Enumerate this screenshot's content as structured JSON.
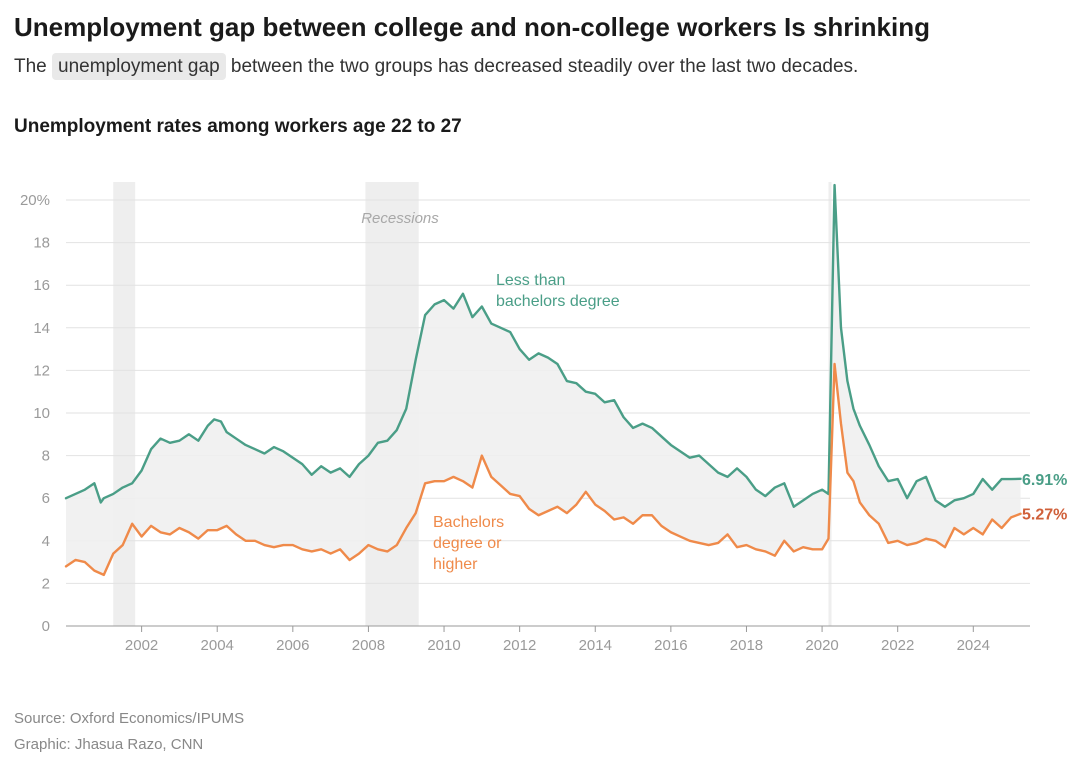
{
  "header": {
    "title": "Unemployment gap between college and non-college workers Is shrinking",
    "subtitle_before": "The",
    "subtitle_highlight": "unemployment gap",
    "subtitle_after": "between the two groups has decreased steadily over the last two decades.",
    "chart_title": "Unemployment rates among workers age 22 to 27"
  },
  "footer": {
    "source": "Source: Oxford Economics/IPUMS",
    "graphic": "Graphic: Jhasua Razo, CNN"
  },
  "chart_data": {
    "type": "line",
    "title": "Unemployment rates among workers age 22 to 27",
    "xlabel": "",
    "ylabel": "",
    "xlim": [
      2000.0,
      2025.5
    ],
    "ylim": [
      0,
      20
    ],
    "yticks": [
      {
        "value": 0,
        "label": "0"
      },
      {
        "value": 2,
        "label": "2"
      },
      {
        "value": 4,
        "label": "4"
      },
      {
        "value": 6,
        "label": "6"
      },
      {
        "value": 8,
        "label": "8"
      },
      {
        "value": 10,
        "label": "10"
      },
      {
        "value": 12,
        "label": "12"
      },
      {
        "value": 14,
        "label": "14"
      },
      {
        "value": 16,
        "label": "16"
      },
      {
        "value": 18,
        "label": "18"
      },
      {
        "value": 20,
        "label": "20%"
      }
    ],
    "xticks": [
      {
        "value": 2002,
        "label": "2002"
      },
      {
        "value": 2004,
        "label": "2004"
      },
      {
        "value": 2006,
        "label": "2006"
      },
      {
        "value": 2008,
        "label": "2008"
      },
      {
        "value": 2010,
        "label": "2010"
      },
      {
        "value": 2012,
        "label": "2012"
      },
      {
        "value": 2014,
        "label": "2014"
      },
      {
        "value": 2016,
        "label": "2016"
      },
      {
        "value": 2018,
        "label": "2018"
      },
      {
        "value": 2020,
        "label": "2020"
      },
      {
        "value": 2022,
        "label": "2022"
      },
      {
        "value": 2024,
        "label": "2024"
      }
    ],
    "recessions": [
      [
        2001.25,
        2001.83
      ],
      [
        2007.92,
        2009.33
      ],
      [
        2020.17,
        2020.25
      ]
    ],
    "recession_label": "Recessions",
    "gap_fill_color": "#efefef",
    "series": [
      {
        "name": "Less than bachelors degree",
        "label_lines": [
          "Less than",
          "bachelors degree"
        ],
        "color": "#4a9e87",
        "end_label": "6.91%",
        "x": [
          2000.0,
          2000.25,
          2000.5,
          2000.75,
          2000.92,
          2001.0,
          2001.25,
          2001.5,
          2001.75,
          2002.0,
          2002.25,
          2002.5,
          2002.75,
          2003.0,
          2003.25,
          2003.5,
          2003.75,
          2003.92,
          2004.1,
          2004.25,
          2004.5,
          2004.75,
          2005.0,
          2005.25,
          2005.5,
          2005.75,
          2006.0,
          2006.25,
          2006.5,
          2006.75,
          2007.0,
          2007.25,
          2007.5,
          2007.75,
          2008.0,
          2008.25,
          2008.5,
          2008.75,
          2009.0,
          2009.25,
          2009.5,
          2009.75,
          2010.0,
          2010.25,
          2010.5,
          2010.75,
          2011.0,
          2011.25,
          2011.5,
          2011.75,
          2012.0,
          2012.25,
          2012.5,
          2012.75,
          2013.0,
          2013.25,
          2013.5,
          2013.75,
          2014.0,
          2014.25,
          2014.5,
          2014.75,
          2015.0,
          2015.25,
          2015.5,
          2015.75,
          2016.0,
          2016.25,
          2016.5,
          2016.75,
          2017.0,
          2017.25,
          2017.5,
          2017.75,
          2018.0,
          2018.25,
          2018.5,
          2018.75,
          2019.0,
          2019.25,
          2019.5,
          2019.75,
          2020.0,
          2020.17,
          2020.33,
          2020.5,
          2020.67,
          2020.83,
          2021.0,
          2021.25,
          2021.5,
          2021.75,
          2022.0,
          2022.25,
          2022.5,
          2022.75,
          2023.0,
          2023.25,
          2023.5,
          2023.75,
          2024.0,
          2024.25,
          2024.5,
          2024.75,
          2025.0,
          2025.25
        ],
        "values": [
          6.0,
          6.2,
          6.4,
          6.7,
          5.8,
          6.0,
          6.2,
          6.5,
          6.7,
          7.3,
          8.3,
          8.8,
          8.6,
          8.7,
          9.0,
          8.7,
          9.4,
          9.7,
          9.6,
          9.1,
          8.8,
          8.5,
          8.3,
          8.1,
          8.4,
          8.2,
          7.9,
          7.6,
          7.1,
          7.5,
          7.2,
          7.4,
          7.0,
          7.6,
          8.0,
          8.6,
          8.7,
          9.2,
          10.2,
          12.5,
          14.6,
          15.1,
          15.3,
          14.9,
          15.6,
          14.5,
          15.0,
          14.2,
          14.0,
          13.8,
          13.0,
          12.5,
          12.8,
          12.6,
          12.3,
          11.5,
          11.4,
          11.0,
          10.9,
          10.5,
          10.6,
          9.8,
          9.3,
          9.5,
          9.3,
          8.9,
          8.5,
          8.2,
          7.9,
          8.0,
          7.6,
          7.2,
          7.0,
          7.4,
          7.0,
          6.4,
          6.1,
          6.5,
          6.7,
          5.6,
          5.9,
          6.2,
          6.4,
          6.2,
          20.7,
          14.0,
          11.5,
          10.2,
          9.4,
          8.5,
          7.5,
          6.8,
          6.9,
          6.0,
          6.8,
          7.0,
          5.9,
          5.6,
          5.9,
          6.0,
          6.2,
          6.9,
          6.4,
          6.9,
          6.9,
          6.91
        ]
      },
      {
        "name": "Bachelors degree or higher",
        "label_lines": [
          "Bachelors",
          "degree or",
          "higher"
        ],
        "color": "#ef8a4a",
        "end_color": "#d0603a",
        "end_label": "5.27%",
        "x": [
          2000.0,
          2000.25,
          2000.5,
          2000.75,
          2001.0,
          2001.25,
          2001.5,
          2001.75,
          2002.0,
          2002.25,
          2002.5,
          2002.75,
          2003.0,
          2003.25,
          2003.5,
          2003.75,
          2004.0,
          2004.25,
          2004.5,
          2004.75,
          2005.0,
          2005.25,
          2005.5,
          2005.75,
          2006.0,
          2006.25,
          2006.5,
          2006.75,
          2007.0,
          2007.25,
          2007.5,
          2007.75,
          2008.0,
          2008.25,
          2008.5,
          2008.75,
          2009.0,
          2009.25,
          2009.5,
          2009.75,
          2010.0,
          2010.25,
          2010.5,
          2010.75,
          2011.0,
          2011.25,
          2011.5,
          2011.75,
          2012.0,
          2012.25,
          2012.5,
          2012.75,
          2013.0,
          2013.25,
          2013.5,
          2013.75,
          2014.0,
          2014.25,
          2014.5,
          2014.75,
          2015.0,
          2015.25,
          2015.5,
          2015.75,
          2016.0,
          2016.25,
          2016.5,
          2016.75,
          2017.0,
          2017.25,
          2017.5,
          2017.75,
          2018.0,
          2018.25,
          2018.5,
          2018.75,
          2019.0,
          2019.25,
          2019.5,
          2019.75,
          2020.0,
          2020.17,
          2020.33,
          2020.5,
          2020.67,
          2020.83,
          2021.0,
          2021.25,
          2021.5,
          2021.75,
          2022.0,
          2022.25,
          2022.5,
          2022.75,
          2023.0,
          2023.25,
          2023.5,
          2023.75,
          2024.0,
          2024.25,
          2024.5,
          2024.75,
          2025.0,
          2025.25
        ],
        "values": [
          2.8,
          3.1,
          3.0,
          2.6,
          2.4,
          3.4,
          3.8,
          4.8,
          4.2,
          4.7,
          4.4,
          4.3,
          4.6,
          4.4,
          4.1,
          4.5,
          4.5,
          4.7,
          4.3,
          4.0,
          4.0,
          3.8,
          3.7,
          3.8,
          3.8,
          3.6,
          3.5,
          3.6,
          3.4,
          3.6,
          3.1,
          3.4,
          3.8,
          3.6,
          3.5,
          3.8,
          4.6,
          5.3,
          6.7,
          6.8,
          6.8,
          7.0,
          6.8,
          6.5,
          8.0,
          7.0,
          6.6,
          6.2,
          6.1,
          5.5,
          5.2,
          5.4,
          5.6,
          5.3,
          5.7,
          6.3,
          5.7,
          5.4,
          5.0,
          5.1,
          4.8,
          5.2,
          5.2,
          4.7,
          4.4,
          4.2,
          4.0,
          3.9,
          3.8,
          3.9,
          4.3,
          3.7,
          3.8,
          3.6,
          3.5,
          3.3,
          4.0,
          3.5,
          3.7,
          3.6,
          3.6,
          4.1,
          12.3,
          9.5,
          7.2,
          6.8,
          5.8,
          5.2,
          4.8,
          3.9,
          4.0,
          3.8,
          3.9,
          4.1,
          4.0,
          3.7,
          4.6,
          4.3,
          4.6,
          4.3,
          5.0,
          4.6,
          5.1,
          5.27
        ]
      }
    ]
  }
}
